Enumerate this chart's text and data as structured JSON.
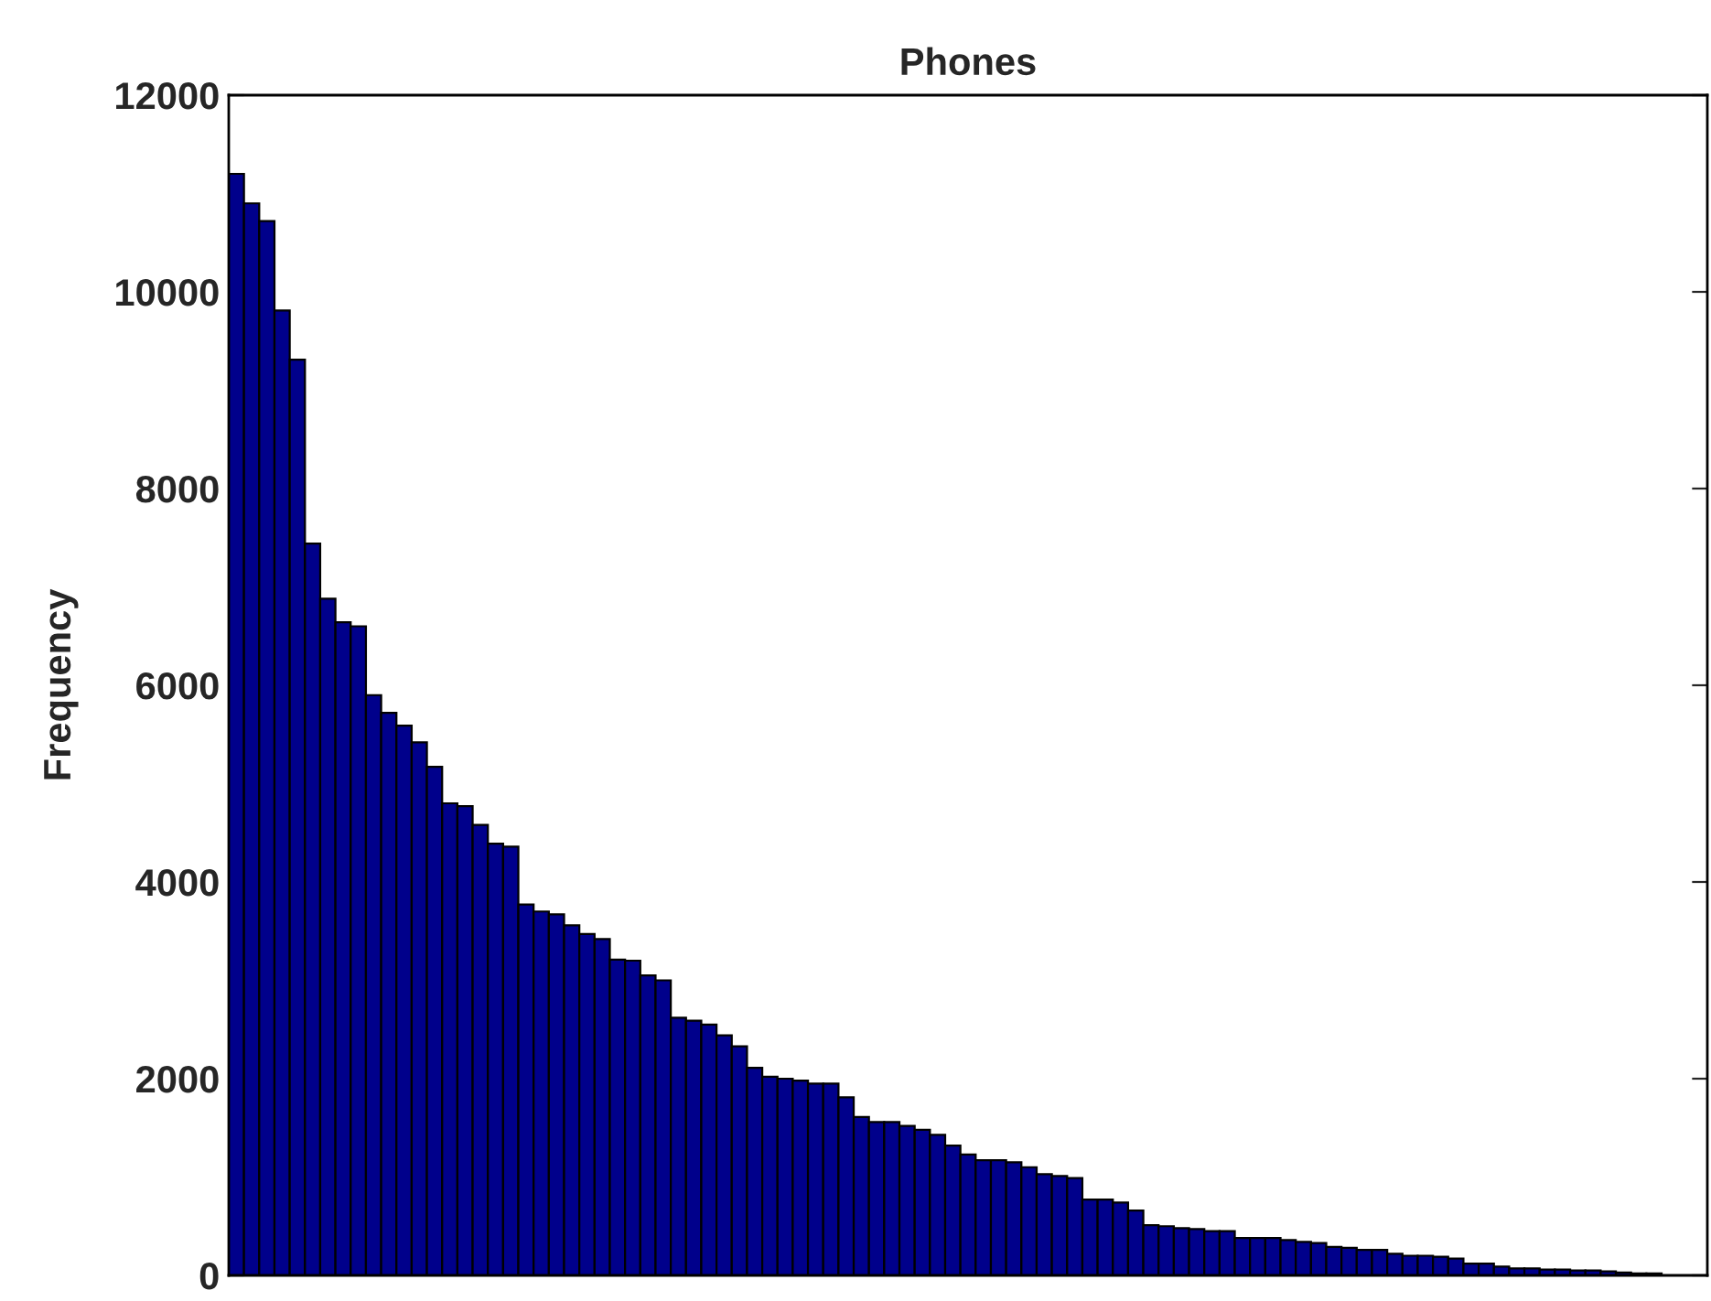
{
  "chart_data": {
    "type": "bar",
    "title": "Phones",
    "ylabel": "Frequency",
    "categories": [
      null,
      null,
      null,
      null,
      null,
      null,
      null,
      null,
      null,
      null,
      null,
      null,
      null,
      null,
      null,
      null,
      null,
      null,
      null,
      null,
      null,
      null,
      null,
      null,
      null,
      null,
      null,
      null,
      null,
      null,
      null,
      null,
      null,
      null,
      null,
      null,
      null,
      null,
      null,
      null,
      null,
      null,
      null,
      null,
      null,
      null,
      null,
      null,
      null,
      null,
      null,
      null,
      null,
      null,
      null,
      null,
      null,
      null,
      null,
      null,
      null,
      null,
      null,
      null,
      null,
      null,
      null,
      null,
      null,
      null,
      null,
      null,
      null,
      null,
      null,
      null,
      null,
      null,
      null,
      null,
      null,
      null,
      null,
      null,
      null,
      null,
      null,
      null,
      null,
      null,
      null,
      null,
      null,
      null,
      null,
      null,
      null
    ],
    "values": [
      11200,
      10900,
      10720,
      9810,
      9310,
      7440,
      6880,
      6640,
      6600,
      5900,
      5720,
      5590,
      5420,
      5170,
      4800,
      4770,
      4580,
      4390,
      4360,
      3770,
      3700,
      3670,
      3560,
      3470,
      3420,
      3210,
      3200,
      3050,
      3000,
      2620,
      2590,
      2550,
      2440,
      2330,
      2110,
      2020,
      2000,
      1980,
      1950,
      1950,
      1810,
      1610,
      1560,
      1560,
      1520,
      1480,
      1430,
      1320,
      1230,
      1170,
      1170,
      1150,
      1100,
      1030,
      1010,
      990,
      770,
      770,
      740,
      660,
      510,
      500,
      480,
      470,
      450,
      450,
      380,
      380,
      380,
      360,
      340,
      330,
      290,
      280,
      260,
      260,
      220,
      200,
      200,
      190,
      170,
      120,
      120,
      90,
      70,
      70,
      60,
      60,
      50,
      50,
      40,
      30,
      20,
      20,
      null,
      null,
      null
    ],
    "color": "#00008b",
    "ylim": [
      0,
      12000
    ],
    "yticks": [
      0,
      2000,
      4000,
      6000,
      8000,
      10000,
      12000
    ],
    "grid": false,
    "tick_labels": "y"
  }
}
